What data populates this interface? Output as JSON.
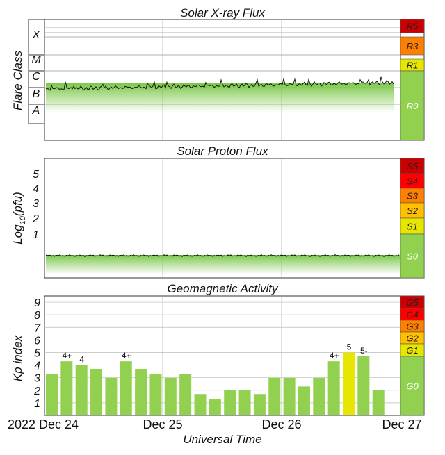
{
  "chart_data": {
    "type": "dashboard",
    "panels": [
      {
        "title": "Solar X-ray Flux",
        "ylabel": "Flare Class",
        "classes": [
          "X",
          "M",
          "C",
          "B",
          "A"
        ],
        "scale": [
          {
            "label": "R5",
            "color": "#cc0000"
          },
          {
            "label": "R3",
            "color": "#ff8000"
          },
          {
            "label": "R1",
            "color": "#e6e600"
          },
          {
            "label": "R0",
            "color": "#92d050"
          }
        ]
      },
      {
        "title": "Solar Proton Flux",
        "ylabel": "Log",
        "ylabel_sub": "10",
        "ylabel_unit": "(pfu)",
        "ticks": [
          "5",
          "4",
          "3",
          "2",
          "1"
        ],
        "scale": [
          {
            "label": "S5",
            "color": "#cc0000"
          },
          {
            "label": "S4",
            "color": "#ff0000"
          },
          {
            "label": "S3",
            "color": "#ff8000"
          },
          {
            "label": "S2",
            "color": "#ffc000"
          },
          {
            "label": "S1",
            "color": "#e6e600"
          },
          {
            "label": "S0",
            "color": "#92d050"
          }
        ]
      },
      {
        "title": "Geomagnetic Activity",
        "ylabel": "Kp index",
        "ticks": [
          "9",
          "8",
          "7",
          "6",
          "5",
          "4",
          "3",
          "2",
          "1"
        ],
        "scale": [
          {
            "label": "G5",
            "color": "#cc0000"
          },
          {
            "label": "G4",
            "color": "#ff0000"
          },
          {
            "label": "G3",
            "color": "#ff8000"
          },
          {
            "label": "G2",
            "color": "#ffc000"
          },
          {
            "label": "G1",
            "color": "#e6e600"
          },
          {
            "label": "G0",
            "color": "#92d050"
          }
        ],
        "kp_values": [
          3.3,
          4.3,
          4.0,
          3.7,
          3.0,
          4.3,
          3.7,
          3.3,
          3.0,
          3.3,
          1.7,
          1.3,
          2.0,
          2.0,
          1.7,
          3.0,
          3.0,
          2.3,
          3.0,
          4.3,
          5.0,
          4.7,
          2.0
        ],
        "kp_labels": [
          "",
          "4+",
          "4",
          "",
          "",
          "4+",
          "",
          "",
          "",
          "",
          "",
          "",
          "",
          "",
          "",
          "",
          "",
          "",
          "",
          "4+",
          "5",
          "5-",
          ""
        ],
        "kp_colors": [
          "#92d050",
          "#92d050",
          "#92d050",
          "#92d050",
          "#92d050",
          "#92d050",
          "#92d050",
          "#92d050",
          "#92d050",
          "#92d050",
          "#92d050",
          "#92d050",
          "#92d050",
          "#92d050",
          "#92d050",
          "#92d050",
          "#92d050",
          "#92d050",
          "#92d050",
          "#92d050",
          "#e6e600",
          "#92d050",
          "#92d050"
        ]
      }
    ],
    "x_ticks": [
      "2022 Dec 24",
      "Dec 25",
      "Dec 26",
      "Dec 27"
    ],
    "xlabel": "Universal Time"
  }
}
